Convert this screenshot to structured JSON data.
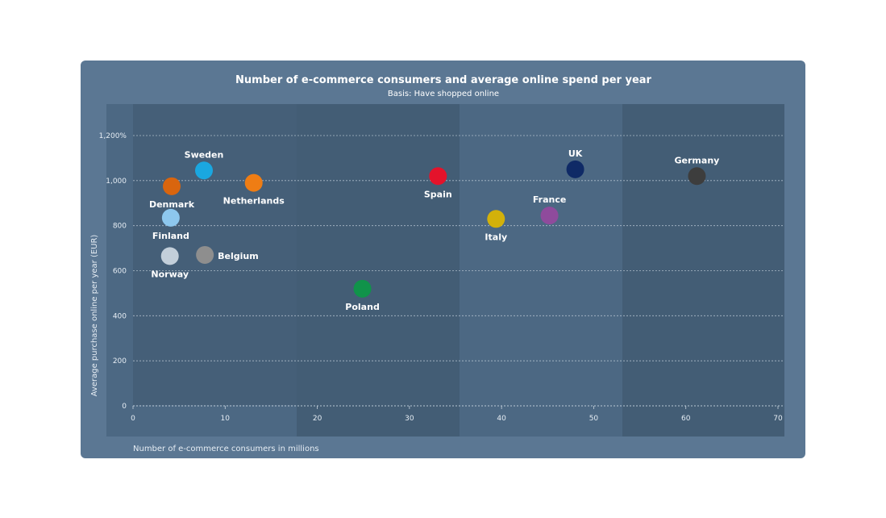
{
  "chart_data": {
    "type": "scatter",
    "title": "Number of e-commerce consumers and average online spend per year",
    "subtitle": "Basis: Have shopped online",
    "xlabel": "Number of e-commerce consumers in millions",
    "ylabel": "Average purchase online per year (EUR)",
    "xlim": [
      0,
      70
    ],
    "ylim": [
      0,
      1200
    ],
    "x_ticks": [
      0,
      10,
      20,
      30,
      40,
      50,
      60,
      70
    ],
    "y_ticks": [
      0,
      200,
      400,
      600,
      800,
      1000,
      1200
    ],
    "y_tick_labels": [
      "0",
      "200",
      "400",
      "600",
      "800",
      "1,000",
      "1,200%"
    ],
    "x_tick_labels": [
      "0",
      "10",
      "20",
      "30",
      "40",
      "50",
      "60",
      "70"
    ],
    "grid": true,
    "points": [
      {
        "label": "Sweden",
        "x": 7.7,
        "y": 1045,
        "color": "#1aa7e0",
        "label_pos": "above"
      },
      {
        "label": "Denmark",
        "x": 4.2,
        "y": 975,
        "color": "#d9650e",
        "label_pos": "below"
      },
      {
        "label": "Netherlands",
        "x": 13.1,
        "y": 990,
        "color": "#ef7d14",
        "label_pos": "below"
      },
      {
        "label": "Finland",
        "x": 4.1,
        "y": 835,
        "color": "#8dc7ee",
        "label_pos": "below"
      },
      {
        "label": "Norway",
        "x": 4.0,
        "y": 665,
        "color": "#c3cfda",
        "label_pos": "below"
      },
      {
        "label": "Belgium",
        "x": 7.8,
        "y": 670,
        "color": "#8e8e8e",
        "label_pos": "right"
      },
      {
        "label": "Poland",
        "x": 24.9,
        "y": 520,
        "color": "#10934a",
        "label_pos": "below"
      },
      {
        "label": "Spain",
        "x": 33.1,
        "y": 1020,
        "color": "#e4132b",
        "label_pos": "below"
      },
      {
        "label": "Italy",
        "x": 39.4,
        "y": 830,
        "color": "#d3b10a",
        "label_pos": "below"
      },
      {
        "label": "France",
        "x": 45.2,
        "y": 845,
        "color": "#8f4b9c",
        "label_pos": "above"
      },
      {
        "label": "UK",
        "x": 48.0,
        "y": 1050,
        "color": "#0f2a66",
        "label_pos": "above"
      },
      {
        "label": "Germany",
        "x": 61.2,
        "y": 1020,
        "color": "#3d3d3d",
        "label_pos": "above"
      }
    ],
    "colors": {
      "background": "#5b7793",
      "band_dark": "#3f5870",
      "band_light": "#4a6580",
      "grid": "#c7d3de",
      "text": "#ffffff"
    }
  }
}
